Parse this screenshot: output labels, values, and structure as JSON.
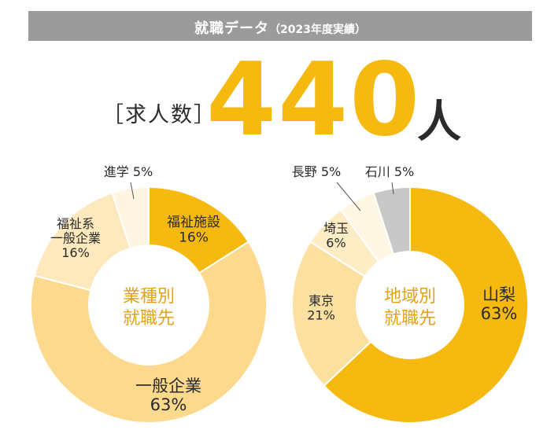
{
  "header": {
    "title": "就職データ",
    "subtitle": "（2023年度実績）"
  },
  "offers": {
    "label": "［求人数］",
    "value": "440",
    "unit": "人"
  },
  "colors": {
    "header_bg": "#9b9b9b",
    "accent": "#f5b90f",
    "text": "#2b2b2b",
    "center_text": "#e2a21a"
  },
  "chart_data": [
    {
      "type": "pie",
      "center_label": [
        "業種別",
        "就職先"
      ],
      "categories": [
        "福祉施設",
        "一般企業",
        "福祉系一般企業",
        "進学"
      ],
      "values": [
        16,
        63,
        16,
        5
      ],
      "slice_labels": [
        [
          "福祉施設",
          "16%"
        ],
        [
          "一般企業",
          "63%"
        ],
        [
          "福祉系",
          "一般企業",
          "16%"
        ],
        [
          "進学 5%"
        ]
      ],
      "colors": [
        "#f5b90f",
        "#fcd98c",
        "#fde9bd",
        "#fff5e0"
      ]
    },
    {
      "type": "pie",
      "center_label": [
        "地域別",
        "就職先"
      ],
      "categories": [
        "山梨",
        "東京",
        "埼玉",
        "長野",
        "石川"
      ],
      "values": [
        63,
        21,
        6,
        5,
        5
      ],
      "slice_labels": [
        [
          "山梨",
          "63%"
        ],
        [
          "東京",
          "21%"
        ],
        [
          "埼玉",
          "6%"
        ],
        [
          "長野 5%"
        ],
        [
          "石川 5%"
        ]
      ],
      "colors": [
        "#f5b90f",
        "#fce0a0",
        "#fdecc4",
        "#fff6e4",
        "#c8c8c8"
      ]
    }
  ]
}
